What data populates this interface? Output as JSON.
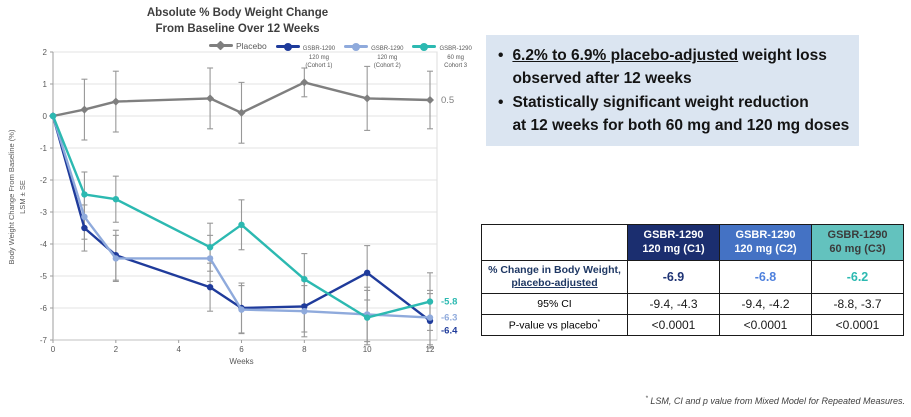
{
  "chart": {
    "title_line1": "Absolute % Body Weight Change",
    "title_line2": "From Baseline Over 12 Weeks",
    "y_axis_label_line1": "Body Weight Change From Baseline  (%)",
    "y_axis_label_line2": "LSM ± SE",
    "x_axis_label": "Weeks"
  },
  "chart_data": {
    "type": "line",
    "title": "Absolute % Body Weight Change From Baseline Over 12 Weeks",
    "xlabel": "Weeks",
    "ylabel": "Body Weight Change From Baseline (%), LSM ± SE",
    "x": [
      0,
      1,
      2,
      5,
      6,
      8,
      10,
      12
    ],
    "xticks": [
      0,
      2,
      4,
      6,
      8,
      10,
      12
    ],
    "ylim": [
      -7,
      2
    ],
    "grid": "horizontal",
    "legend_position": "top",
    "series": [
      {
        "name": "Placebo",
        "color": "#7f7f7f",
        "marker": "diamond",
        "values": [
          0,
          0.2,
          0.45,
          0.55,
          0.1,
          1.05,
          0.55,
          0.5
        ],
        "se": [
          0,
          0.95,
          0.95,
          0.95,
          0.95,
          0.45,
          1.0,
          0.9
        ],
        "end_label": "0.5",
        "end_label_bold": false
      },
      {
        "name": "GSBR-1290 120 mg (Cohort 1)",
        "color": "#1f3b9b",
        "marker": "circle",
        "values": [
          0,
          -3.5,
          -4.35,
          -5.35,
          -6.0,
          -5.95,
          -4.9,
          -6.4
        ],
        "se": [
          0,
          0.72,
          0.78,
          0.75,
          0.78,
          0.8,
          0.85,
          0.85
        ],
        "end_label": "-6.4",
        "end_label_bold": true
      },
      {
        "name": "GSBR-1290 120 mg (Cohort 2)",
        "color": "#8faadc",
        "marker": "circle",
        "values": [
          0,
          -3.15,
          -4.45,
          -4.45,
          -6.05,
          -6.1,
          -6.2,
          -6.3
        ],
        "se": [
          0,
          0.7,
          0.72,
          0.72,
          0.75,
          0.8,
          0.85,
          0.85
        ],
        "end_label": "-6.3",
        "end_label_bold": true
      },
      {
        "name": "GSBR-1290 60 mg Cohort 3",
        "color": "#2cb9b1",
        "marker": "circle",
        "values": [
          0,
          -2.45,
          -2.6,
          -4.1,
          -3.4,
          -5.1,
          -6.3,
          -5.8
        ],
        "se": [
          0,
          0.7,
          0.72,
          0.75,
          0.78,
          0.8,
          0.85,
          0.9
        ],
        "end_label": "-5.8",
        "end_label_bold": true
      }
    ],
    "legend": [
      {
        "line1": "Placebo",
        "line2": "",
        "line3": ""
      },
      {
        "line1": "GSBR-1290",
        "line2": "120 mg",
        "line3": "(Cohort 1)"
      },
      {
        "line1": "GSBR-1290",
        "line2": "120 mg",
        "line3": "(Cohort 2)"
      },
      {
        "line1": "GSBR-1290",
        "line2": "60 mg",
        "line3": "Cohort 3"
      }
    ]
  },
  "bullets": [
    {
      "line1_underline": "6.2% to 6.9% placebo-adjusted",
      "line1_rest": " weight loss",
      "line2": "observed after 12 weeks"
    },
    {
      "line1_underline": "",
      "line1_rest": "Statistically significant weight reduction",
      "line2": "at 12 weeks for both 60 mg and 120 mg doses"
    }
  ],
  "table": {
    "columns": [
      {
        "line1": "",
        "line2": "",
        "bg": "#ffffff",
        "fg": "#000000"
      },
      {
        "line1": "GSBR-1290",
        "line2": "120 mg (C1)",
        "bg": "#1b2e6f",
        "fg": "#ffffff"
      },
      {
        "line1": "GSBR-1290",
        "line2": "120 mg (C2)",
        "bg": "#4472c4",
        "fg": "#ffffff"
      },
      {
        "line1": "GSBR-1290",
        "line2": "60 mg (C3)",
        "bg": "#63c2be",
        "fg": "#3b3b3b"
      }
    ],
    "rows": {
      "pct_change": {
        "label_line1": "% Change in Body Weight,",
        "label_line2": "placebo-adjusted",
        "c1": "-6.9",
        "c2": "-6.8",
        "c3": "-6.2"
      },
      "ci": {
        "label": "95% CI",
        "c1": "-9.4, -4.3",
        "c2": "-9.4, -4.2",
        "c3": "-8.8, -3.7"
      },
      "pvalue": {
        "label": "P-value vs placebo",
        "mark": "*",
        "c1": "<0.0001",
        "c2": "<0.0001",
        "c3": "<0.0001"
      }
    },
    "value_colors": {
      "c1": "#1f3475",
      "c2": "#4f81dd",
      "c3": "#2cb9b1"
    }
  },
  "footnote": {
    "symbol": "*",
    "text": " LSM, CI and p value from Mixed Model for Repeated Measures."
  }
}
